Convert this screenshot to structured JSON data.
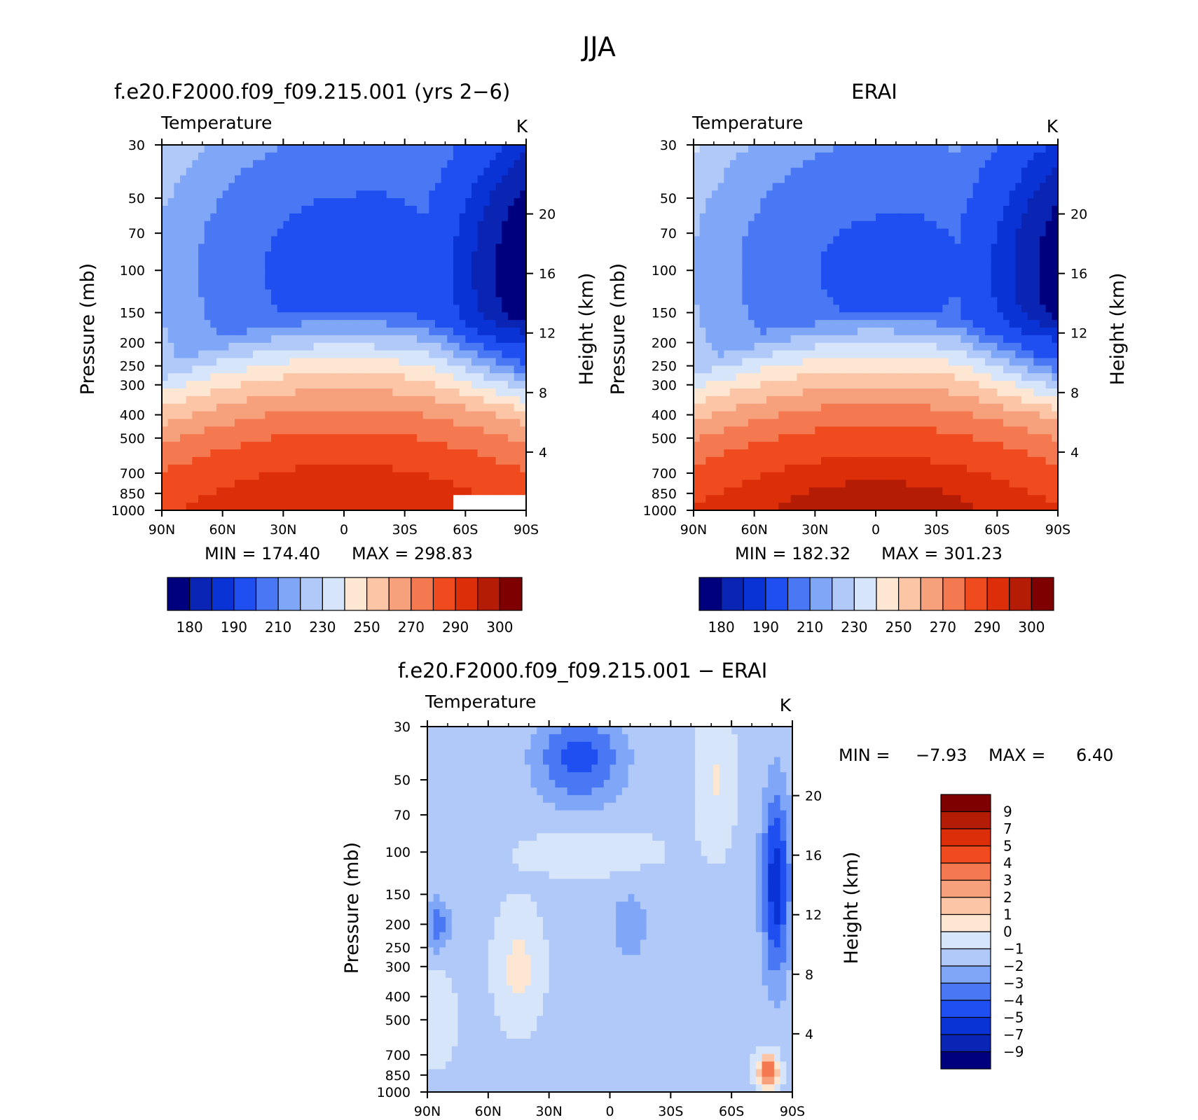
{
  "figure_title": "JJA",
  "colors": {
    "model_palette": [
      "#00007f",
      "#0a24b4",
      "#0a33d6",
      "#1f4ff0",
      "#4a78f4",
      "#7fa6f7",
      "#b1c9f8",
      "#d7e5fb",
      "#fde6d2",
      "#fbc5a6",
      "#f7a07c",
      "#f47850",
      "#f04b1f",
      "#dc2e08",
      "#b51c05",
      "#7f0000"
    ],
    "diff_palette": [
      "#00007f",
      "#0a24b4",
      "#0a33d6",
      "#1f4ff0",
      "#4a78f4",
      "#7fa6f7",
      "#b1c9f8",
      "#d7e5fb",
      "#fde6d2",
      "#fbc5a6",
      "#f7a07c",
      "#f47850",
      "#f04b1f",
      "#dc2e08",
      "#b51c05",
      "#7f0000"
    ]
  },
  "chart_data": [
    {
      "type": "heatmap",
      "title": "f.e20.F2000.f09_f09.215.001 (yrs 2−6)",
      "subtitle": "Temperature",
      "units": "K",
      "xlabel": "",
      "ylabel": "Pressure (mb)",
      "y2label": "Height (km)",
      "x_ticks": [
        "90N",
        "60N",
        "30N",
        "0",
        "30S",
        "60S",
        "90S"
      ],
      "y_ticks": [
        "30",
        "50",
        "70",
        "100",
        "150",
        "200",
        "250",
        "300",
        "400",
        "500",
        "700",
        "850",
        "1000"
      ],
      "y_log_scale": true,
      "ylim": [
        1000,
        30
      ],
      "y2_ticks": [
        "20",
        "16",
        "12",
        "8",
        "4"
      ],
      "min_label": "MIN = 174.40",
      "max_label": "MAX = 298.83",
      "min": 174.4,
      "max": 298.83,
      "colorbar_labels": [
        "180",
        "190",
        "210",
        "230",
        "250",
        "270",
        "290",
        "300"
      ],
      "colorbar_levels": [
        180,
        185,
        190,
        200,
        210,
        220,
        230,
        240,
        250,
        260,
        270,
        280,
        290,
        295,
        300
      ]
    },
    {
      "type": "heatmap",
      "title": "ERAI",
      "subtitle": "Temperature",
      "units": "K",
      "xlabel": "",
      "ylabel": "Pressure (mb)",
      "y2label": "Height (km)",
      "x_ticks": [
        "90N",
        "60N",
        "30N",
        "0",
        "30S",
        "60S",
        "90S"
      ],
      "y_ticks": [
        "30",
        "50",
        "70",
        "100",
        "150",
        "200",
        "250",
        "300",
        "400",
        "500",
        "700",
        "850",
        "1000"
      ],
      "y_log_scale": true,
      "ylim": [
        1000,
        30
      ],
      "y2_ticks": [
        "20",
        "16",
        "12",
        "8",
        "4"
      ],
      "min_label": "MIN = 182.32",
      "max_label": "MAX = 301.23",
      "min": 182.32,
      "max": 301.23,
      "colorbar_labels": [
        "180",
        "190",
        "210",
        "230",
        "250",
        "270",
        "290",
        "300"
      ],
      "colorbar_levels": [
        180,
        185,
        190,
        200,
        210,
        220,
        230,
        240,
        250,
        260,
        270,
        280,
        290,
        295,
        300
      ]
    },
    {
      "type": "heatmap",
      "title": "f.e20.F2000.f09_f09.215.001 − ERAI",
      "subtitle": "Temperature",
      "units": "K",
      "xlabel": "",
      "ylabel": "Pressure (mb)",
      "y2label": "Height (km)",
      "x_ticks": [
        "90N",
        "60N",
        "30N",
        "0",
        "30S",
        "60S",
        "90S"
      ],
      "y_ticks": [
        "30",
        "50",
        "70",
        "100",
        "150",
        "200",
        "250",
        "300",
        "400",
        "500",
        "700",
        "850",
        "1000"
      ],
      "y_log_scale": true,
      "ylim": [
        1000,
        30
      ],
      "y2_ticks": [
        "20",
        "16",
        "12",
        "8",
        "4"
      ],
      "min_label": "MIN =",
      "max_label": "MAX =",
      "min_value": "−7.93",
      "max_value": "6.40",
      "min": -7.93,
      "max": 6.4,
      "colorbar_labels": [
        "9",
        "7",
        "5",
        "4",
        "3",
        "2",
        "1",
        "0",
        "−1",
        "−2",
        "−3",
        "−4",
        "−5",
        "−7",
        "−9"
      ],
      "colorbar_levels": [
        9,
        7,
        5,
        4,
        3,
        2,
        1,
        0,
        -1,
        -2,
        -3,
        -4,
        -5,
        -7,
        -9
      ]
    }
  ]
}
